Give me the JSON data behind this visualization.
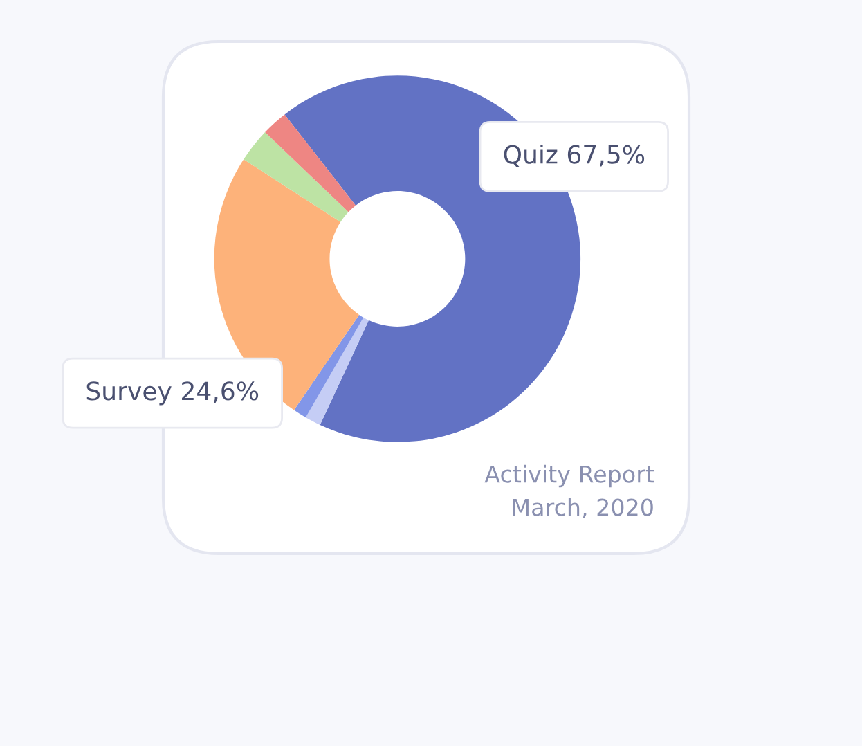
{
  "chart_data": {
    "type": "donut",
    "categories": [
      "Quiz",
      null,
      null,
      "Survey",
      null,
      null
    ],
    "values": [
      67.5,
      1.4,
      1.2,
      24.6,
      3.0,
      2.3
    ],
    "value_labels": [
      "67,5%",
      null,
      null,
      "24,6%",
      null,
      null
    ],
    "colors": [
      "#6272c4",
      "#c5cdf5",
      "#8296e8",
      "#fdb27a",
      "#bde3a4",
      "#ee8683"
    ],
    "annotations": [
      "Activity Report",
      "March, 2020"
    ]
  }
}
